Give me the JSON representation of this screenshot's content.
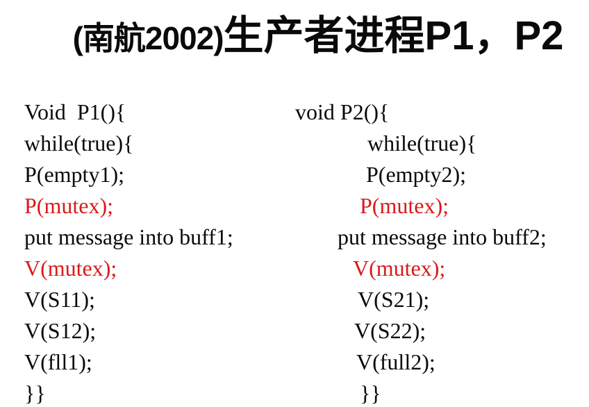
{
  "title": {
    "prefix": "(南航2002)",
    "main": "生产者进程P1，P2"
  },
  "colors": {
    "text": "#0a0a0a",
    "highlight": "#da1a1a",
    "background": "#ffffff"
  },
  "code_columns": [
    {
      "name": "P1",
      "lines": [
        {
          "text": "Void  P1(){",
          "color": "text",
          "indent": 0
        },
        {
          "text": "while(true){",
          "color": "text",
          "indent": 0
        },
        {
          "text": "P(empty1);",
          "color": "text",
          "indent": 0
        },
        {
          "text": "P(mutex);",
          "color": "highlight",
          "indent": 0
        },
        {
          "text": "put message into buff1;",
          "color": "text",
          "indent": 0
        },
        {
          "text": "V(mutex);",
          "color": "highlight",
          "indent": 0
        },
        {
          "text": "V(S11);",
          "color": "text",
          "indent": 0
        },
        {
          "text": "V(S12);",
          "color": "text",
          "indent": 0
        },
        {
          "text": "V(fll1);",
          "color": "text",
          "indent": 0
        },
        {
          "text": "}}",
          "color": "text",
          "indent": 0
        }
      ]
    },
    {
      "name": "P2",
      "lines": [
        {
          "text": "void P2(){",
          "color": "text",
          "indent": 0
        },
        {
          "text": "while(true){",
          "color": "text",
          "indent": 104
        },
        {
          "text": "P(empty2);",
          "color": "text",
          "indent": 102
        },
        {
          "text": "P(mutex);",
          "color": "highlight",
          "indent": 93
        },
        {
          "text": "put message into buff2;",
          "color": "text",
          "indent": 61
        },
        {
          "text": "V(mutex);",
          "color": "highlight",
          "indent": 83
        },
        {
          "text": "V(S21);",
          "color": "text",
          "indent": 90
        },
        {
          "text": "V(S22);",
          "color": "text",
          "indent": 85
        },
        {
          "text": "V(full2);",
          "color": "text",
          "indent": 88
        },
        {
          "text": "}}",
          "color": "text",
          "indent": 93
        }
      ]
    }
  ]
}
